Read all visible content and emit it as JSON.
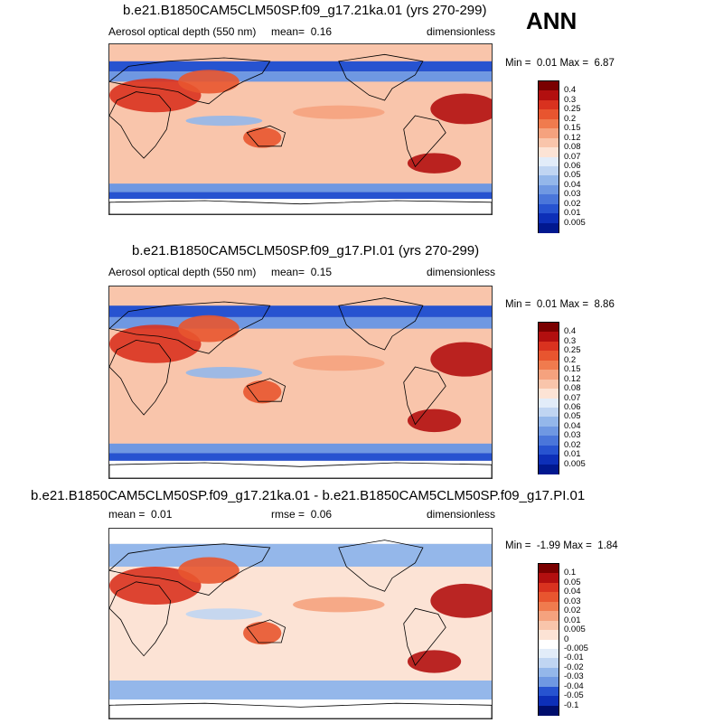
{
  "annotation": "ANN",
  "colors": {
    "red": [
      "#7a0000",
      "#b20f0f",
      "#d9321f",
      "#e8552f",
      "#f07b4e",
      "#f5a27e",
      "#f9c5ab",
      "#fce3d5"
    ],
    "blue": [
      "#e2ecf9",
      "#c0d5f2",
      "#94b7ea",
      "#6f98e2",
      "#4a76da",
      "#2753d0",
      "#0d2fb8",
      "#01188f",
      "#000e6d"
    ],
    "white": "#ffffff"
  },
  "panels": [
    {
      "title": "b.e21.B1850CAM5CLM50SP.f09_g17.21ka.01 (yrs 270-299)",
      "left_label": "Aerosol optical depth (550 nm)",
      "mean_label": "mean=",
      "mean_value": "0.16",
      "units": "dimensionless",
      "min_label": "Min =",
      "min_value": "0.01",
      "max_label": "Max =",
      "max_value": "6.87",
      "colorbar_levels": [
        "0.4",
        "0.3",
        "0.25",
        "0.2",
        "0.15",
        "0.12",
        "0.08",
        "0.07",
        "0.06",
        "0.05",
        "0.04",
        "0.03",
        "0.02",
        "0.01",
        "0.005"
      ]
    },
    {
      "title": "b.e21.B1850CAM5CLM50SP.f09_g17.PI.01 (yrs 270-299)",
      "left_label": "Aerosol optical depth (550 nm)",
      "mean_label": "mean=",
      "mean_value": "0.15",
      "units": "dimensionless",
      "min_label": "Min =",
      "min_value": "0.01",
      "max_label": "Max =",
      "max_value": "8.86",
      "colorbar_levels": [
        "0.4",
        "0.3",
        "0.25",
        "0.2",
        "0.15",
        "0.12",
        "0.08",
        "0.07",
        "0.06",
        "0.05",
        "0.04",
        "0.03",
        "0.02",
        "0.01",
        "0.005"
      ]
    },
    {
      "title": "b.e21.B1850CAM5CLM50SP.f09_g17.21ka.01 - b.e21.B1850CAM5CLM50SP.f09_g17.PI.01",
      "left_label": "mean =",
      "left_value": "0.01",
      "rmse_label": "rmse =",
      "rmse_value": "0.06",
      "units": "dimensionless",
      "min_label": "Min =",
      "min_value": "-1.99",
      "max_label": "Max =",
      "max_value": "1.84",
      "colorbar_levels": [
        "0.1",
        "0.05",
        "0.04",
        "0.03",
        "0.02",
        "0.01",
        "0.005",
        "0",
        "-0.005",
        "-0.01",
        "-0.02",
        "-0.03",
        "-0.04",
        "-0.05",
        "-0.1"
      ]
    }
  ],
  "chart_data": [
    {
      "type": "heatmap",
      "title": "b.e21.B1850CAM5CLM50SP.f09_g17.21ka.01 (yrs 270-299)",
      "variable": "Aerosol optical depth (550 nm)",
      "mean": 0.16,
      "min": 0.01,
      "max": 6.87,
      "units": "dimensionless",
      "levels": [
        0.005,
        0.01,
        0.02,
        0.03,
        0.04,
        0.05,
        0.06,
        0.07,
        0.08,
        0.12,
        0.15,
        0.2,
        0.25,
        0.3,
        0.4
      ]
    },
    {
      "type": "heatmap",
      "title": "b.e21.B1850CAM5CLM50SP.f09_g17.PI.01 (yrs 270-299)",
      "variable": "Aerosol optical depth (550 nm)",
      "mean": 0.15,
      "min": 0.01,
      "max": 8.86,
      "units": "dimensionless",
      "levels": [
        0.005,
        0.01,
        0.02,
        0.03,
        0.04,
        0.05,
        0.06,
        0.07,
        0.08,
        0.12,
        0.15,
        0.2,
        0.25,
        0.3,
        0.4
      ]
    },
    {
      "type": "heatmap",
      "title": "b.e21.B1850CAM5CLM50SP.f09_g17.21ka.01 - b.e21.B1850CAM5CLM50SP.f09_g17.PI.01",
      "mean": 0.01,
      "rmse": 0.06,
      "min": -1.99,
      "max": 1.84,
      "units": "dimensionless",
      "levels": [
        -0.1,
        -0.05,
        -0.04,
        -0.03,
        -0.02,
        -0.01,
        -0.005,
        0,
        0.005,
        0.01,
        0.02,
        0.03,
        0.04,
        0.05,
        0.1
      ]
    }
  ]
}
